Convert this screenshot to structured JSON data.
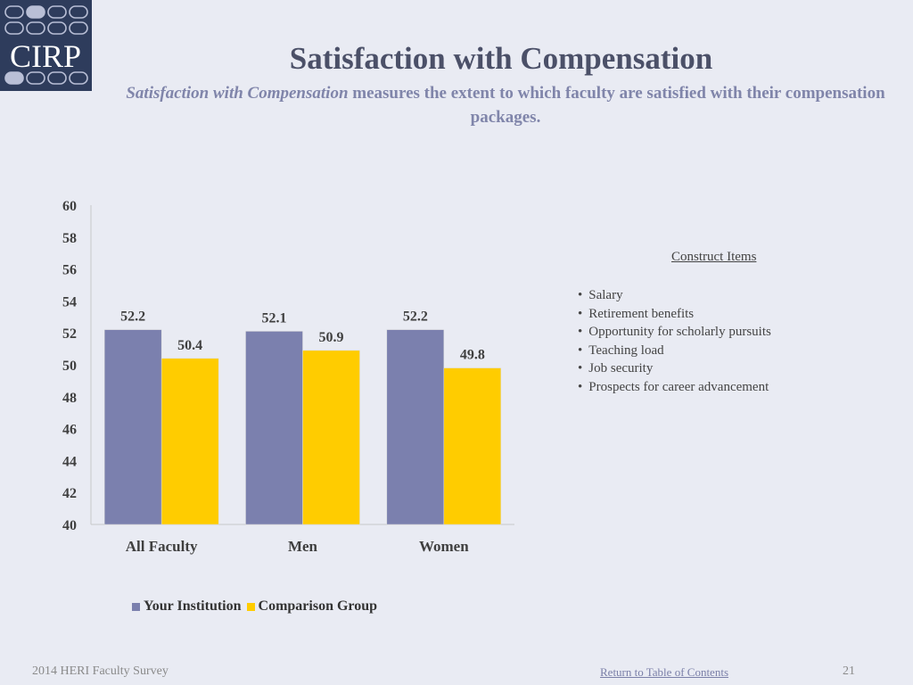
{
  "logo": {
    "text": "CIRP"
  },
  "header": {
    "title": "Satisfaction with Compensation",
    "subtitle_emph": "Satisfaction with Compensation",
    "subtitle_rest": " measures the extent to which faculty are satisfied with their compensation packages."
  },
  "construct": {
    "heading": "Construct Items",
    "items": [
      "Salary",
      "Retirement benefits",
      "Opportunity for scholarly pursuits",
      "Teaching load",
      "Job security",
      "Prospects for career advancement"
    ]
  },
  "chart_data": {
    "type": "bar",
    "categories": [
      "All Faculty",
      "Men",
      "Women"
    ],
    "series": [
      {
        "name": "Your Institution",
        "values": [
          52.2,
          52.1,
          52.2
        ],
        "color": "#7b80ae"
      },
      {
        "name": "Comparison Group",
        "values": [
          50.4,
          50.9,
          49.8
        ],
        "color": "#ffcc00"
      }
    ],
    "ylim": [
      40,
      60
    ],
    "yticks": [
      40,
      42,
      44,
      46,
      48,
      50,
      52,
      54,
      56,
      58,
      60
    ],
    "data_labels": true,
    "legend_position": "bottom",
    "grid": false
  },
  "footer": {
    "left": "2014 HERI Faculty Survey",
    "link": "Return to Table of Contents",
    "page": "21"
  }
}
